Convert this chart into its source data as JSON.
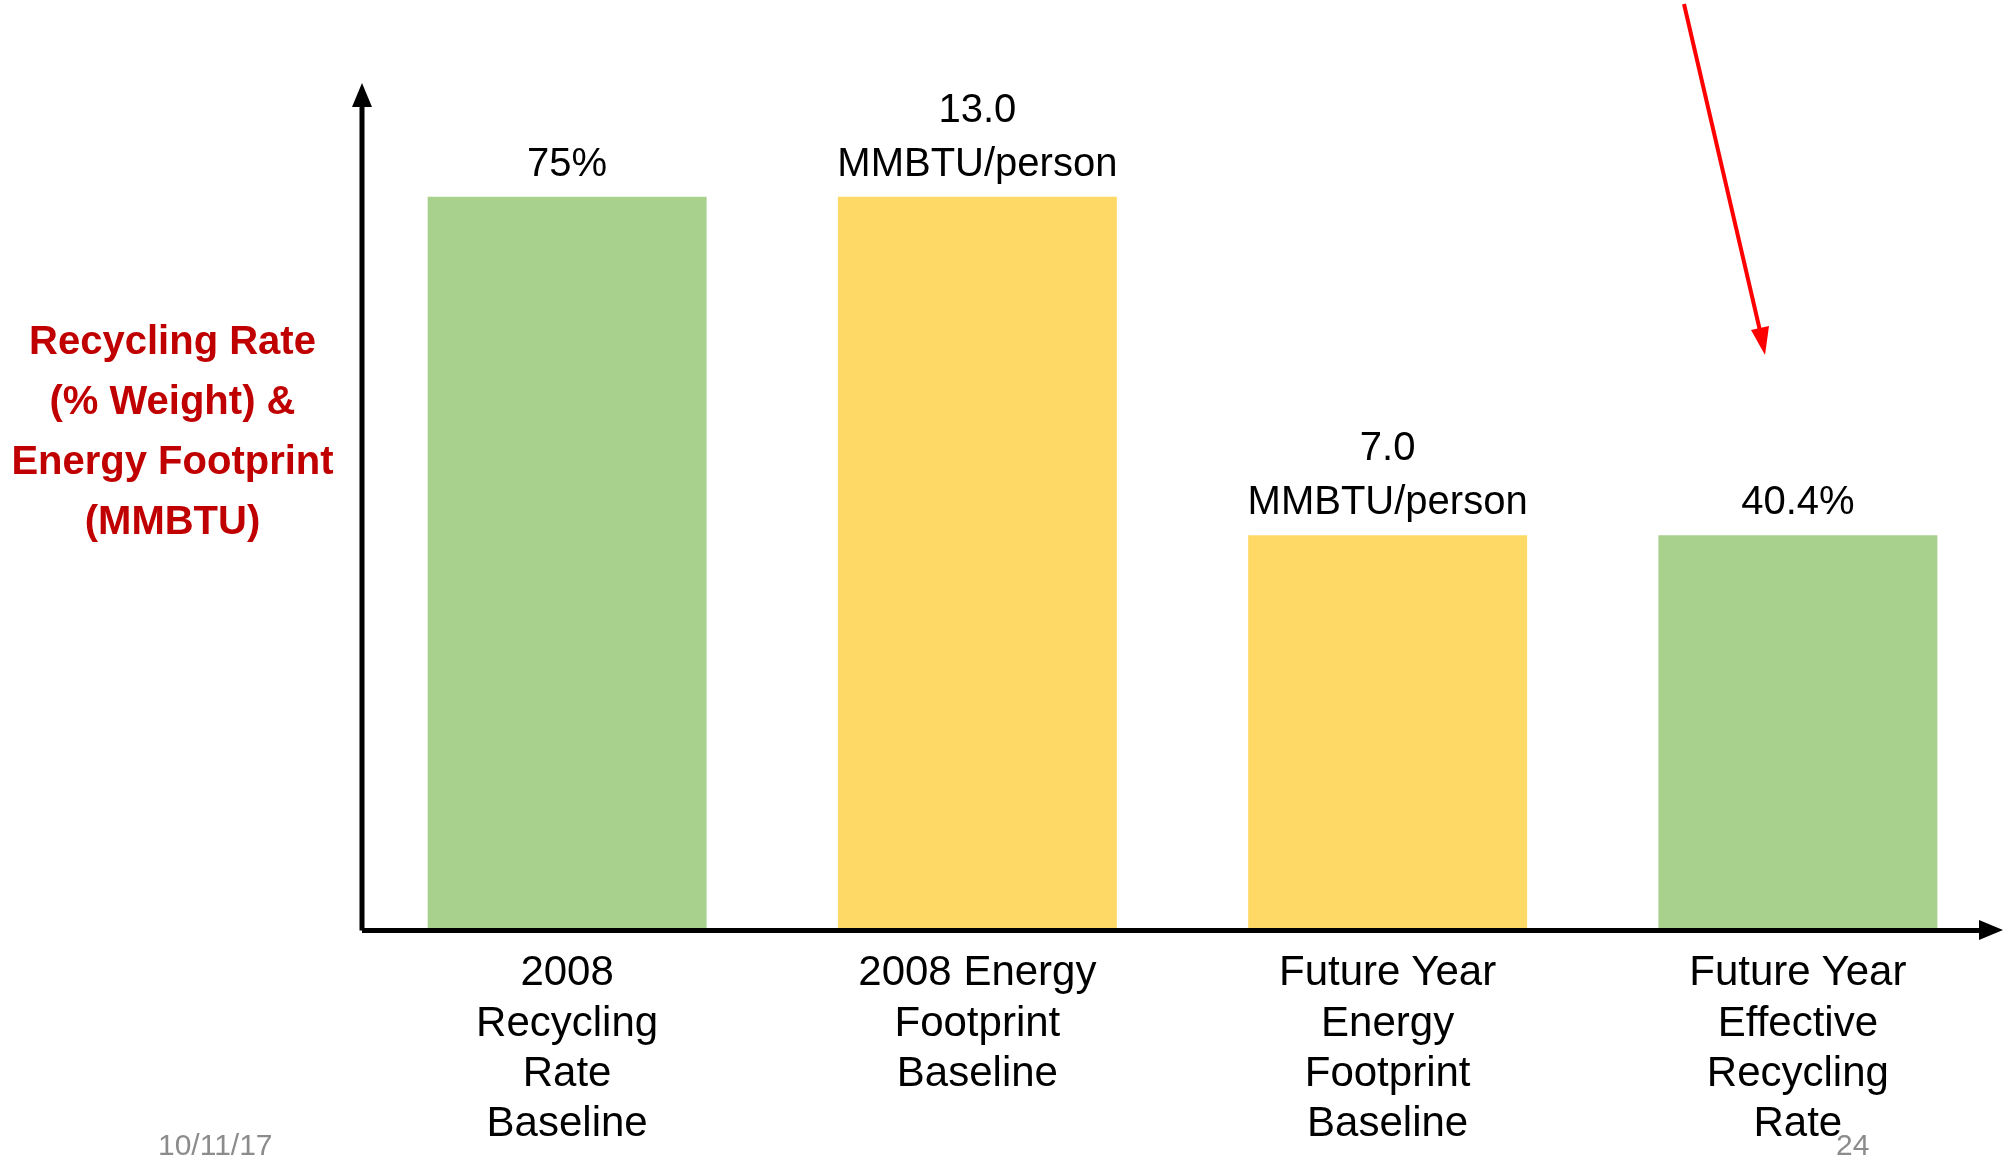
{
  "chart_data": {
    "type": "bar",
    "ylabel": "Recycling Rate (% Weight) & Energy Footprint (MMBTU)",
    "categories": [
      "2008 Recycling Rate Baseline",
      "2008 Energy Footprint Baseline",
      "Future Year Energy Footprint Baseline",
      "Future Year Effective Recycling Rate"
    ],
    "series": [
      {
        "color": "#a9d18e",
        "values": [
          75,
          null,
          null,
          40.4
        ],
        "value_labels": [
          "75%",
          null,
          null,
          "40.4%"
        ]
      },
      {
        "color": "#ffd966",
        "axis": "y2",
        "values": [
          null,
          13.0,
          7.0,
          null
        ],
        "value_labels": [
          null,
          "13.0 MMBTU/person",
          "7.0 MMBTU/person",
          null
        ]
      }
    ],
    "annotations": [
      "10/11/17",
      "24"
    ],
    "grid": false,
    "legend": false
  }
}
